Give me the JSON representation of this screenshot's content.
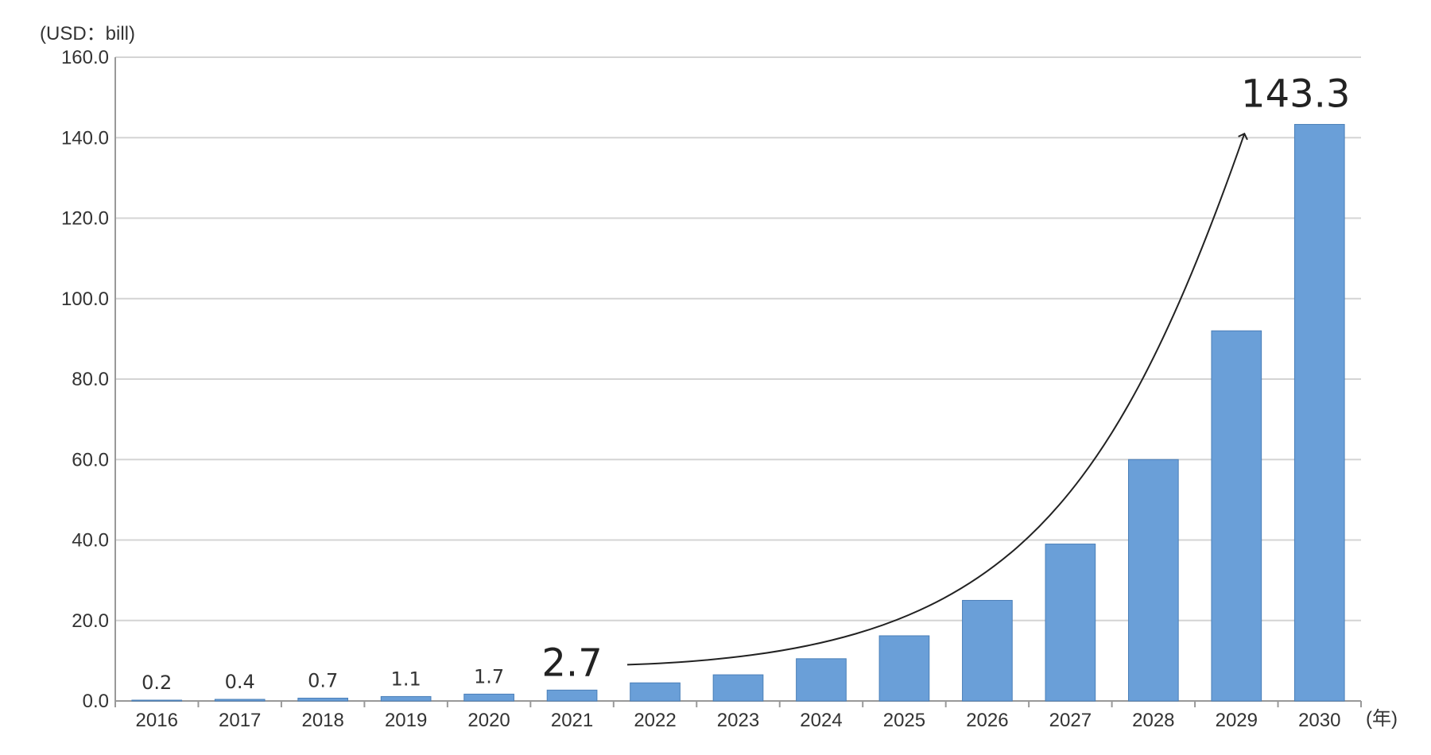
{
  "chart_data": {
    "type": "bar",
    "title": "",
    "ylabel": "(USD：bill)",
    "xlabel": "(年)",
    "ylim": [
      0,
      160
    ],
    "yticks": [
      "0.0",
      "20.0",
      "40.0",
      "60.0",
      "80.0",
      "100.0",
      "120.0",
      "140.0",
      "160.0"
    ],
    "grid": true,
    "bar_color": "#6a9fd8",
    "bar_edge_color": "#4a7fb8",
    "categories": [
      "2016",
      "2017",
      "2018",
      "2019",
      "2020",
      "2021",
      "2022",
      "2023",
      "2024",
      "2025",
      "2026",
      "2027",
      "2028",
      "2029",
      "2030"
    ],
    "values": [
      0.2,
      0.4,
      0.7,
      1.1,
      1.7,
      2.7,
      4.5,
      6.5,
      10.5,
      16.2,
      25.0,
      39.0,
      60.0,
      92.0,
      143.3
    ],
    "data_labels": [
      "0.2",
      "0.4",
      "0.7",
      "1.1",
      "1.7",
      "2.7",
      "",
      "",
      "",
      "",
      "",
      "",
      "",
      "",
      "143.3"
    ],
    "callout_indices": [
      5,
      14
    ],
    "annotations": [
      {
        "type": "arrow",
        "from_category": "2022",
        "to_category": "2029",
        "meaning": "growth trend"
      }
    ]
  }
}
